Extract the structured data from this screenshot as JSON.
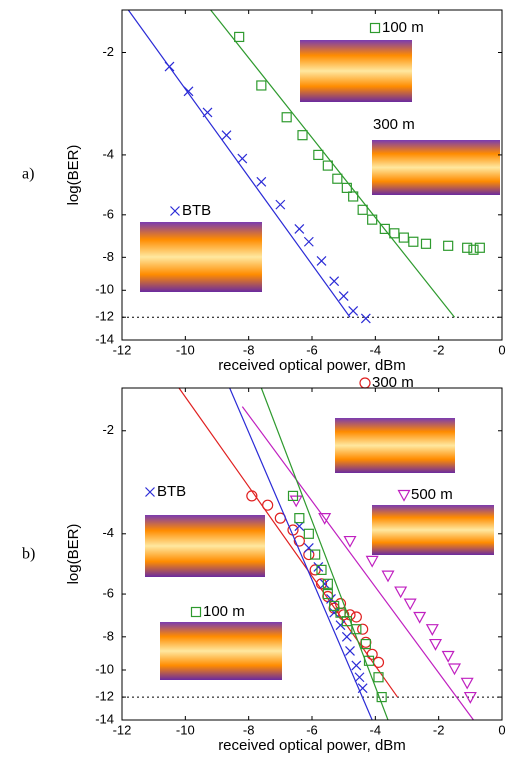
{
  "chart_data": [
    {
      "type": "scatter",
      "panel_label": "a)",
      "xlabel": "received optical power, dBm",
      "ylabel": "log(BER)",
      "yscale": "log",
      "reference_line": -12,
      "xlim": [
        -12,
        0
      ],
      "xticks": [
        -12,
        -10,
        -8,
        -6,
        -4,
        -2,
        0
      ],
      "ylim": [
        -14,
        -1.5
      ],
      "yticks": [
        -2,
        -4,
        -6,
        -8,
        -10,
        -12,
        -14
      ],
      "series": [
        {
          "name": "BTB",
          "color": "#2b2bd6",
          "marker": "x",
          "x": [
            -10.5,
            -9.9,
            -9.3,
            -8.7,
            -8.2,
            -7.6,
            -7.0,
            -6.4,
            -6.1,
            -5.7,
            -5.3,
            -5.0,
            -4.7,
            -4.3
          ],
          "values": [
            -2.2,
            -2.6,
            -3.0,
            -3.5,
            -4.1,
            -4.8,
            -5.6,
            -6.6,
            -7.2,
            -8.2,
            -9.4,
            -10.4,
            -11.5,
            -12.1
          ],
          "fit": {
            "x": [
              -11.8,
              -4.8
            ],
            "values": [
              -1.5,
              -12
            ]
          }
        },
        {
          "name": "100 m",
          "color": "#2e9a2e",
          "marker": "square",
          "x": [
            -8.3,
            -7.6,
            -6.8,
            -6.3,
            -5.8,
            -5.5,
            -5.2,
            -4.9,
            -4.7,
            -4.4,
            -4.1,
            -3.7,
            -3.4,
            -3.1,
            -2.8,
            -2.4,
            -1.7,
            -1.1,
            -0.9,
            -0.7
          ],
          "values": [
            -1.8,
            -2.5,
            -3.1,
            -3.5,
            -4.0,
            -4.3,
            -4.7,
            -5.0,
            -5.3,
            -5.8,
            -6.2,
            -6.6,
            -6.8,
            -7.0,
            -7.2,
            -7.3,
            -7.4,
            -7.5,
            -7.6,
            -7.5
          ],
          "fit": {
            "x": [
              -9.2,
              -1.5
            ],
            "values": [
              -1.5,
              -12
            ]
          }
        },
        {
          "name": "300 m",
          "color": "#000000",
          "marker": "none",
          "x": [],
          "values": []
        }
      ]
    },
    {
      "type": "scatter",
      "panel_label": "b)",
      "xlabel": "received optical power, dBm",
      "ylabel": "log(BER)",
      "yscale": "log",
      "reference_line": -12,
      "xlim": [
        -12,
        0
      ],
      "xticks": [
        -12,
        -10,
        -8,
        -6,
        -4,
        -2,
        0
      ],
      "ylim": [
        -14,
        -1.5
      ],
      "yticks": [
        -2,
        -4,
        -6,
        -8,
        -10,
        -12,
        -14
      ],
      "series": [
        {
          "name": "300 m",
          "color": "#e02020",
          "marker": "circle",
          "x": [
            -7.9,
            -7.4,
            -7.0,
            -6.6,
            -6.4,
            -6.1,
            -5.9,
            -5.7,
            -5.5,
            -5.3,
            -5.1,
            -5.0,
            -4.8,
            -4.6,
            -4.4,
            -4.3,
            -4.1,
            -3.9
          ],
          "values": [
            -3.1,
            -3.3,
            -3.6,
            -3.9,
            -4.2,
            -4.6,
            -5.1,
            -5.6,
            -6.1,
            -6.6,
            -6.4,
            -6.9,
            -6.9,
            -7.0,
            -7.6,
            -8.3,
            -9.0,
            -9.5
          ],
          "fit": {
            "x": [
              -10.2,
              -3.3
            ],
            "values": [
              -1.5,
              -12
            ]
          }
        },
        {
          "name": "500 m",
          "color": "#c020c0",
          "marker": "triangle",
          "x": [
            -6.5,
            -5.6,
            -4.8,
            -4.1,
            -3.6,
            -3.2,
            -2.9,
            -2.6,
            -2.2,
            -2.1,
            -1.7,
            -1.5,
            -1.1,
            -1.0
          ],
          "values": [
            -3.2,
            -3.6,
            -4.2,
            -4.8,
            -5.3,
            -5.9,
            -6.4,
            -7.0,
            -7.6,
            -8.4,
            -9.1,
            -9.9,
            -10.9,
            -12.0
          ],
          "fit": {
            "x": [
              -8.2,
              -0.9
            ],
            "values": [
              -1.7,
              -14
            ]
          }
        },
        {
          "name": "BTB",
          "color": "#2b2bd6",
          "marker": "x",
          "x": [
            -6.4,
            -6.1,
            -5.8,
            -5.6,
            -5.4,
            -5.3,
            -5.1,
            -4.9,
            -4.8,
            -4.6,
            -4.5,
            -4.4
          ],
          "values": [
            -3.8,
            -4.4,
            -5.0,
            -5.6,
            -6.2,
            -6.8,
            -7.4,
            -8.0,
            -8.8,
            -9.7,
            -10.5,
            -11.3
          ],
          "fit": {
            "x": [
              -8.6,
              -4.1
            ],
            "values": [
              -1.5,
              -14
            ]
          }
        },
        {
          "name": "100 m",
          "color": "#2e9a2e",
          "marker": "square",
          "x": [
            -6.6,
            -6.4,
            -6.1,
            -5.9,
            -5.7,
            -5.5,
            -5.5,
            -5.3,
            -5.1,
            -4.9,
            -4.6,
            -4.3,
            -4.2,
            -3.9,
            -3.8
          ],
          "values": [
            -3.1,
            -3.6,
            -4.0,
            -4.6,
            -5.1,
            -5.6,
            -6.0,
            -6.5,
            -6.8,
            -7.2,
            -7.6,
            -8.4,
            -9.4,
            -10.5,
            -12.0
          ],
          "fit": {
            "x": [
              -7.6,
              -3.6
            ],
            "values": [
              -1.5,
              -14
            ]
          }
        }
      ]
    }
  ]
}
